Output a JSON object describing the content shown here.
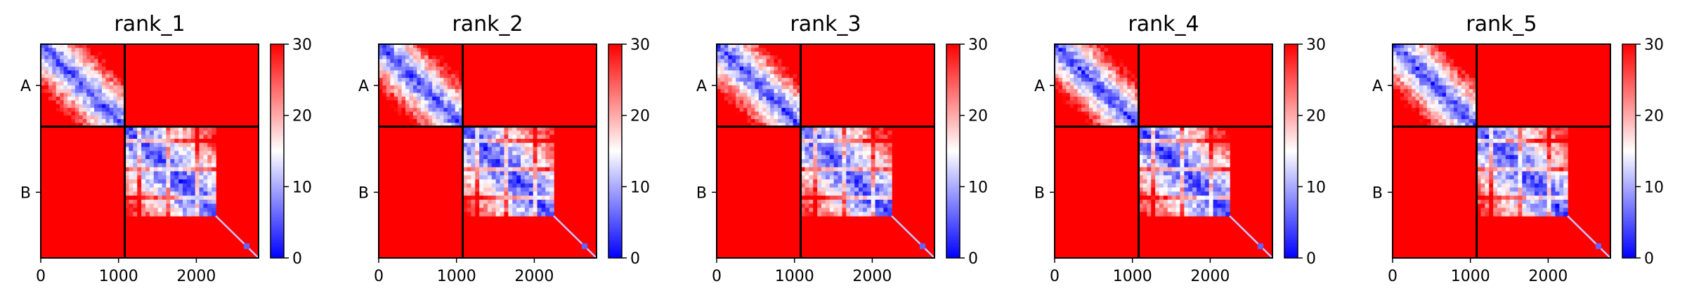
{
  "chart_data": [
    {
      "type": "heatmap",
      "title": "rank_1",
      "x_ticks": [
        0,
        1000,
        2000
      ],
      "xlim": [
        0,
        2800
      ],
      "chain_labels": [
        "A",
        "B"
      ],
      "chain_boundary": 1080,
      "colorbar": {
        "min": 0,
        "max": 30,
        "ticks": [
          0,
          10,
          20,
          30
        ],
        "colormap": "bwr"
      }
    },
    {
      "type": "heatmap",
      "title": "rank_2",
      "x_ticks": [
        0,
        1000,
        2000
      ],
      "xlim": [
        0,
        2800
      ],
      "chain_labels": [
        "A",
        "B"
      ],
      "chain_boundary": 1080,
      "colorbar": {
        "min": 0,
        "max": 30,
        "ticks": [
          0,
          10,
          20,
          30
        ],
        "colormap": "bwr"
      }
    },
    {
      "type": "heatmap",
      "title": "rank_3",
      "x_ticks": [
        0,
        1000,
        2000
      ],
      "xlim": [
        0,
        2800
      ],
      "chain_labels": [
        "A",
        "B"
      ],
      "chain_boundary": 1080,
      "colorbar": {
        "min": 0,
        "max": 30,
        "ticks": [
          0,
          10,
          20,
          30
        ],
        "colormap": "bwr"
      }
    },
    {
      "type": "heatmap",
      "title": "rank_4",
      "x_ticks": [
        0,
        1000,
        2000
      ],
      "xlim": [
        0,
        2800
      ],
      "chain_labels": [
        "A",
        "B"
      ],
      "chain_boundary": 1080,
      "colorbar": {
        "min": 0,
        "max": 30,
        "ticks": [
          0,
          10,
          20,
          30
        ],
        "colormap": "bwr"
      }
    },
    {
      "type": "heatmap",
      "title": "rank_5",
      "x_ticks": [
        0,
        1000,
        2000
      ],
      "xlim": [
        0,
        2800
      ],
      "chain_labels": [
        "A",
        "B"
      ],
      "chain_boundary": 1080,
      "colorbar": {
        "min": 0,
        "max": 30,
        "ticks": [
          0,
          10,
          20,
          30
        ],
        "colormap": "bwr"
      }
    }
  ],
  "colors": {
    "low": "#0000ff",
    "mid": "#ffffff",
    "high": "#ff0000",
    "divider": "#000000"
  }
}
